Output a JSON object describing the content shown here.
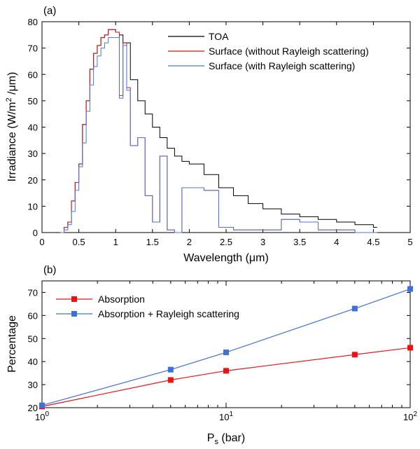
{
  "chart_data": [
    {
      "type": "line",
      "panel_label": "(a)",
      "xlabel": "Wavelength (μm)",
      "ylabel_main": "Irradiance (W/m",
      "ylabel_sup": "2",
      "ylabel_tail": " /μm)",
      "xlim": [
        0,
        5
      ],
      "ylim": [
        0,
        80
      ],
      "xticks": [
        0,
        0.5,
        1,
        1.5,
        2,
        2.5,
        3,
        3.5,
        4,
        4.5,
        5
      ],
      "xtick_labels": [
        "0",
        "0.5",
        "1",
        "1.5",
        "2",
        "2.5",
        "3",
        "3.5",
        "4",
        "4.5",
        "5"
      ],
      "yticks": [
        0,
        10,
        20,
        30,
        40,
        50,
        60,
        70,
        80
      ],
      "ytick_labels": [
        "0",
        "10",
        "20",
        "30",
        "40",
        "50",
        "60",
        "70",
        "80"
      ],
      "legend_position": "top-right",
      "series": [
        {
          "name": "TOA",
          "color": "#000000",
          "x": [
            0.25,
            0.3,
            0.35,
            0.4,
            0.45,
            0.5,
            0.55,
            0.6,
            0.65,
            0.7,
            0.75,
            0.8,
            0.85,
            0.9,
            0.95,
            1.0,
            1.05,
            1.1,
            1.2,
            1.3,
            1.4,
            1.5,
            1.6,
            1.7,
            1.8,
            1.9,
            2.0,
            2.2,
            2.4,
            2.6,
            2.8,
            3.0,
            3.25,
            3.5,
            3.75,
            4.0,
            4.25,
            4.5
          ],
          "y": [
            0,
            2,
            4,
            12,
            19,
            26,
            41,
            50,
            62,
            68,
            71,
            74,
            75,
            77,
            77,
            76,
            75,
            72,
            58,
            50,
            45,
            40,
            36,
            32,
            29,
            27,
            26,
            22,
            17,
            14,
            11,
            9,
            7,
            6,
            5,
            4,
            3,
            2
          ]
        },
        {
          "name": "Surface (without Rayleigh scattering)",
          "color": "#dd1111",
          "x": [
            0.25,
            0.3,
            0.35,
            0.4,
            0.45,
            0.5,
            0.55,
            0.6,
            0.65,
            0.7,
            0.75,
            0.8,
            0.85,
            0.9,
            0.95,
            1.0,
            1.05,
            1.1,
            1.15,
            1.2,
            1.3,
            1.4,
            1.5,
            1.6,
            1.7,
            1.8,
            1.9,
            2.0,
            2.2,
            2.4,
            2.6,
            2.8,
            3.0,
            3.25,
            3.5,
            3.75,
            4.0,
            4.25,
            4.5
          ],
          "y": [
            0,
            2,
            4,
            12,
            19,
            26,
            41,
            50,
            62,
            68,
            71,
            74,
            75,
            77,
            77,
            76,
            52,
            72,
            55,
            33,
            36,
            14,
            4,
            29,
            1,
            0,
            17,
            17,
            16,
            2,
            1,
            1,
            1,
            5,
            4,
            1,
            1,
            0,
            0
          ]
        },
        {
          "name": "Surface (with Rayleigh scattering)",
          "color": "#4a76d8",
          "x": [
            0.25,
            0.3,
            0.35,
            0.4,
            0.45,
            0.5,
            0.55,
            0.6,
            0.65,
            0.7,
            0.75,
            0.8,
            0.85,
            0.9,
            0.95,
            1.0,
            1.05,
            1.1,
            1.15,
            1.2,
            1.3,
            1.4,
            1.5,
            1.6,
            1.7,
            1.8,
            1.9,
            2.0,
            2.2,
            2.4,
            2.6,
            2.8,
            3.0,
            3.25,
            3.5,
            3.75,
            4.0,
            4.25,
            4.5
          ],
          "y": [
            0,
            1,
            3,
            8,
            16,
            25,
            34,
            46,
            56,
            63,
            67,
            70,
            72,
            74,
            74,
            74,
            51,
            71,
            54,
            33,
            36,
            14,
            4,
            29,
            1,
            0,
            17,
            17,
            16,
            2,
            1,
            1,
            1,
            5,
            4,
            1,
            1,
            0,
            0
          ]
        }
      ]
    },
    {
      "type": "line",
      "panel_label": "(b)",
      "xscale": "log",
      "xlabel_main": "P",
      "xlabel_sub": "s",
      "xlabel_tail": " (bar)",
      "ylabel": "Percentage",
      "xlim": [
        1,
        100
      ],
      "ylim": [
        20,
        75
      ],
      "xticks": [
        1,
        10,
        100
      ],
      "xtick_bases": [
        "10",
        "10",
        "10"
      ],
      "xtick_exps": [
        "0",
        "1",
        "2"
      ],
      "yticks": [
        20,
        30,
        40,
        50,
        60,
        70
      ],
      "ytick_labels": [
        "20",
        "30",
        "40",
        "50",
        "60",
        "70"
      ],
      "legend_position": "top-left",
      "series": [
        {
          "name": "Absorption",
          "color": "#ee1111",
          "x": [
            1,
            5,
            10,
            50,
            100
          ],
          "y": [
            20.5,
            32,
            36,
            43,
            46
          ]
        },
        {
          "name": "Absorption + Rayleigh scattering",
          "color": "#3f6fd8",
          "x": [
            1,
            5,
            10,
            50,
            100
          ],
          "y": [
            21,
            36.5,
            44,
            63,
            71.5
          ]
        }
      ]
    }
  ]
}
